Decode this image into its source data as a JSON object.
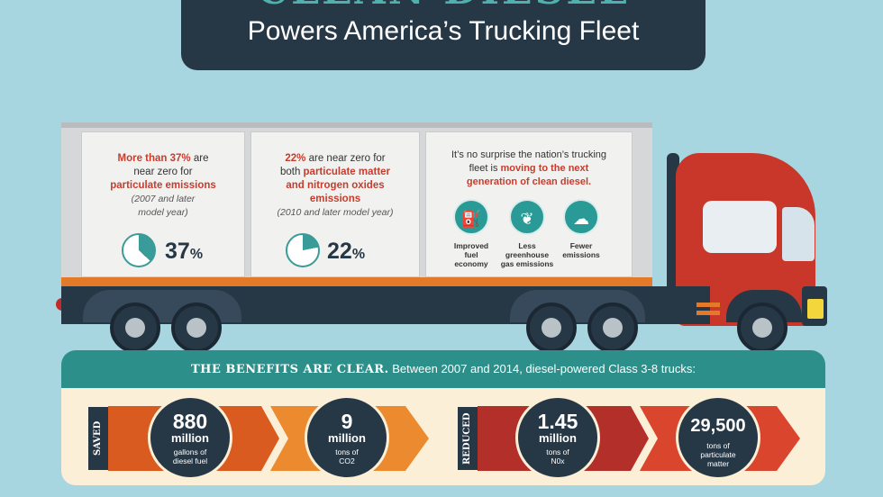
{
  "header": {
    "title": "CLEAN DIESEL",
    "subtitle": "Powers America’s Trucking Fleet"
  },
  "panel1": {
    "line1_red": "More than 37%",
    "line1_rest": " are",
    "line2": "near zero for",
    "line3_red": "particulate emissions",
    "line4": "(2007 and later",
    "line5": "model year)",
    "percent": "37",
    "percent_sign": "%",
    "pie_fraction": 0.37
  },
  "panel2": {
    "line1_red": "22%",
    "line1_rest": " are near zero for",
    "line2_plain": "both ",
    "line2_red": "particulate matter",
    "line3_red": "and nitrogen oxides",
    "line4_red": "emissions",
    "line5": "(2010 and later model year)",
    "percent": "22",
    "percent_sign": "%",
    "pie_fraction": 0.22
  },
  "panel3": {
    "line1": "It’s no surprise the nation’s trucking",
    "line2_plain": "fleet is ",
    "line2_red": "moving to the next",
    "line3_red": "generation of clean diesel.",
    "benefits": [
      {
        "icon": "fuel-pump-icon",
        "glyph": "⛽",
        "label_lines": [
          "Improved",
          "fuel",
          "economy"
        ]
      },
      {
        "icon": "leaf-icon",
        "glyph": "❦",
        "label_lines": [
          "Less",
          "greenhouse",
          "gas emissions"
        ]
      },
      {
        "icon": "cloud-co2-icon",
        "glyph": "☁",
        "label_lines": [
          "Fewer",
          "emissions"
        ]
      }
    ]
  },
  "benefits_section": {
    "heading_bold": "THE BENEFITS ARE CLEAR.",
    "heading_rest": " Between 2007 and 2014, diesel-powered Class 3-8 trucks:",
    "saved_tag": "SAVED",
    "reduced_tag": "REDUCED",
    "stats": [
      {
        "number": "880",
        "unit": "million",
        "desc1": "gallons of",
        "desc2": "diesel fuel"
      },
      {
        "number": "9",
        "unit": "million",
        "desc1": "tons of",
        "desc2": "CO2"
      },
      {
        "number": "1.45",
        "unit": "million",
        "desc1": "tons of",
        "desc2": "N0x"
      },
      {
        "number": "29,500",
        "unit": "",
        "desc1": "tons of",
        "desc2": "particulate",
        "desc3": "matter"
      }
    ]
  },
  "colors": {
    "background": "#a7d6e0",
    "navy": "#263746",
    "teal": "#2c8f8a",
    "red": "#c9372a",
    "orange": "#e27a2a"
  }
}
